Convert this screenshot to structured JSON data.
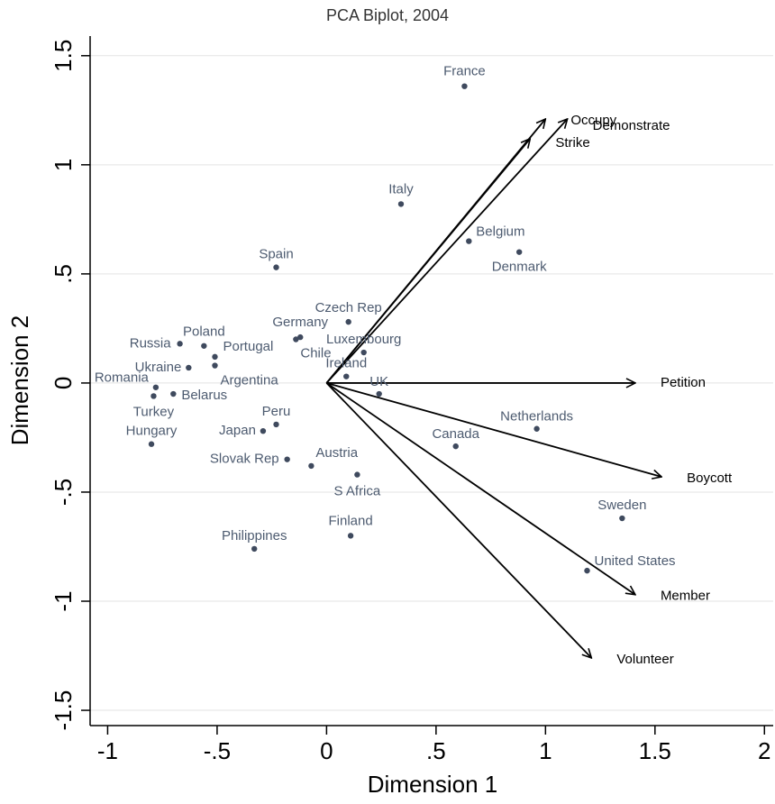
{
  "chart_data": {
    "type": "biplot",
    "title": "PCA Biplot, 2004",
    "x_label": "Dimension 1",
    "y_label": "Dimension 2",
    "xlim": [
      -1.08,
      2.04
    ],
    "ylim": [
      -1.57,
      1.59
    ],
    "xticks": [
      -1,
      {
        "value": -0.5,
        "label": "-.5"
      },
      0,
      {
        "value": 0.5,
        "label": ".5"
      },
      1,
      1.5,
      2
    ],
    "yticks": [
      -1.5,
      -1,
      {
        "value": -0.5,
        "label": "-.5"
      },
      0,
      {
        "value": 0.5,
        "label": ".5"
      },
      1,
      1.5
    ],
    "grid": true,
    "points": {
      "color": "#3f4a5e",
      "label_color": "#4d5b70",
      "labels": [
        "France",
        "Italy",
        "Belgium",
        "Denmark",
        "Spain",
        "Czech Rep",
        "Germany",
        "Chile",
        "Luxembourg",
        "Ireland",
        "UK",
        "Russia",
        "Poland",
        "Portugal",
        "Argentina",
        "Ukraine",
        "Romania",
        "Turkey",
        "Belarus",
        "Hungary",
        "Japan",
        "Peru",
        "Slovak Rep",
        "Austria",
        "S Africa",
        "Finland",
        "Philippines",
        "Canada",
        "Netherlands",
        "Sweden",
        "United States"
      ],
      "x": [
        0.63,
        0.34,
        0.65,
        0.88,
        -0.23,
        0.1,
        -0.12,
        -0.14,
        0.17,
        0.09,
        0.24,
        -0.67,
        -0.56,
        -0.51,
        -0.51,
        -0.63,
        -0.78,
        -0.79,
        -0.7,
        -0.8,
        -0.29,
        -0.23,
        -0.18,
        -0.07,
        0.14,
        0.11,
        -0.33,
        0.59,
        0.96,
        1.35,
        1.19
      ],
      "y": [
        1.36,
        0.82,
        0.65,
        0.6,
        0.53,
        0.28,
        0.21,
        0.2,
        0.14,
        0.03,
        -0.05,
        0.18,
        0.17,
        0.12,
        0.08,
        0.07,
        -0.02,
        -0.06,
        -0.05,
        -0.28,
        -0.22,
        -0.19,
        -0.35,
        -0.38,
        -0.42,
        -0.7,
        -0.76,
        -0.29,
        -0.21,
        -0.62,
        -0.86
      ]
    },
    "arrows": {
      "color": "#000000",
      "labels": [
        "Occupy",
        "Demonstrate",
        "Strike",
        "Petition",
        "Boycott",
        "Member",
        "Volunteer"
      ],
      "x": [
        1.0,
        1.1,
        0.93,
        1.41,
        1.53,
        1.41,
        1.21
      ],
      "y": [
        1.21,
        1.21,
        1.12,
        0.0,
        -0.43,
        -0.97,
        -1.26
      ]
    }
  }
}
